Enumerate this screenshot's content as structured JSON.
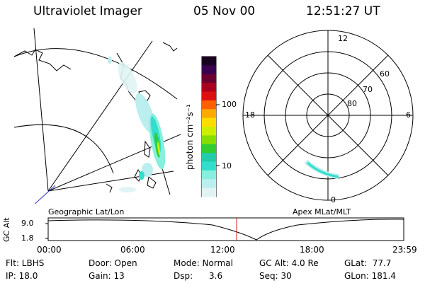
{
  "header": {
    "instrument": "Ultraviolet Imager",
    "date": "05 Nov 00",
    "time": "12:51:27 UT"
  },
  "colorbar": {
    "label": "photon cm⁻²s⁻¹",
    "ticks": [
      "100",
      "10"
    ],
    "colors": [
      "#1a0020",
      "#3a0050",
      "#6a0030",
      "#aa0020",
      "#dd1010",
      "#ff6000",
      "#ffaa00",
      "#ffdd00",
      "#ccee00",
      "#88dd00",
      "#33cc33",
      "#22ccaa",
      "#33ddcc",
      "#88eedd",
      "#bbeeee",
      "#e0f4f4"
    ]
  },
  "map_labels": {
    "left": "Geographic Lat/Lon",
    "right": "Apex MLat/MLT"
  },
  "polar": {
    "mlt": [
      "12",
      "18",
      "6",
      "0"
    ],
    "lat": [
      "60",
      "70",
      "80"
    ]
  },
  "orbit": {
    "ylabel": "GC Alt",
    "ymax": "9.0",
    "ymin": "1.8",
    "xticks": [
      "00:00",
      "06:00",
      "12:00",
      "18:00",
      "23:59"
    ]
  },
  "params": {
    "filter": "Flt: LBHS",
    "door": "Door: Open",
    "mode": "Mode: Normal",
    "gcalt": "GC Alt: 4.0 Re",
    "glat": "GLat:  77.7",
    "ip": "IP: 18.0",
    "gain": "Gain: 13",
    "dsp": "Dsp:      3.6",
    "seq": "Seq: 30",
    "glon": "GLon: 181.4"
  }
}
